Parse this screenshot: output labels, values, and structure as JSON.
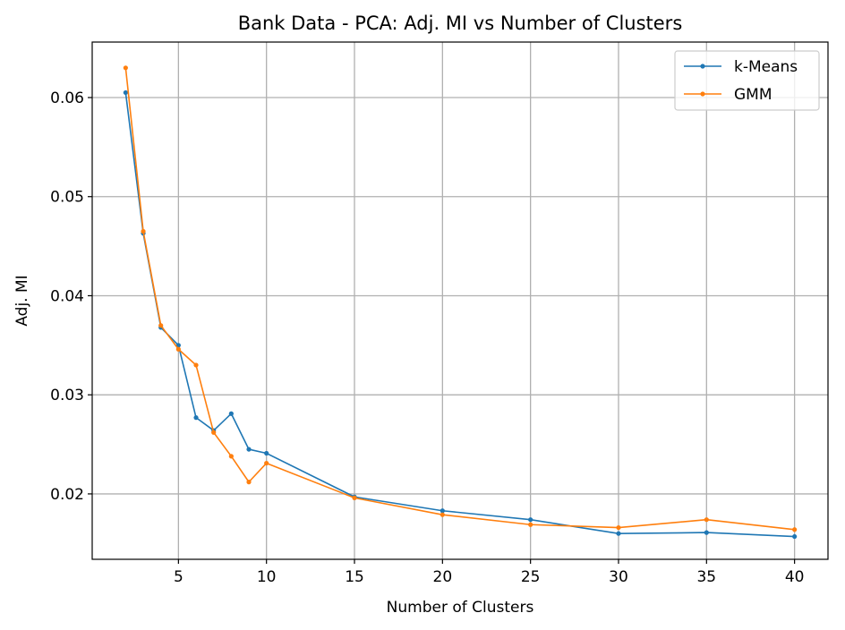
{
  "chart_data": {
    "type": "line",
    "title": "Bank Data - PCA: Adj. MI vs Number of Clusters",
    "xlabel": "Number of Clusters",
    "ylabel": "Adj. MI",
    "x": [
      2,
      3,
      4,
      5,
      6,
      7,
      8,
      9,
      10,
      15,
      20,
      25,
      30,
      35,
      40
    ],
    "xlim": [
      0.1,
      41.9
    ],
    "ylim": [
      0.0134,
      0.0656
    ],
    "xticks": [
      5,
      10,
      15,
      20,
      25,
      30,
      35,
      40
    ],
    "yticks": [
      0.02,
      0.03,
      0.04,
      0.05,
      0.06
    ],
    "xtick_labels": [
      "5",
      "10",
      "15",
      "20",
      "25",
      "30",
      "35",
      "40"
    ],
    "ytick_labels": [
      "0.02",
      "0.03",
      "0.04",
      "0.05",
      "0.06"
    ],
    "grid": true,
    "legend_position": "top-right",
    "series": [
      {
        "name": "k-Means",
        "color": "#1f77b4",
        "values": [
          0.0605,
          0.0463,
          0.0368,
          0.035,
          0.0277,
          0.0264,
          0.0281,
          0.0245,
          0.0241,
          0.0197,
          0.0183,
          0.0174,
          0.016,
          0.0161,
          0.0157
        ]
      },
      {
        "name": "GMM",
        "color": "#ff7f0e",
        "values": [
          0.063,
          0.0465,
          0.037,
          0.0346,
          0.033,
          0.0262,
          0.0238,
          0.0212,
          0.0231,
          0.0196,
          0.0179,
          0.0169,
          0.0166,
          0.0174,
          0.0164
        ]
      }
    ]
  }
}
